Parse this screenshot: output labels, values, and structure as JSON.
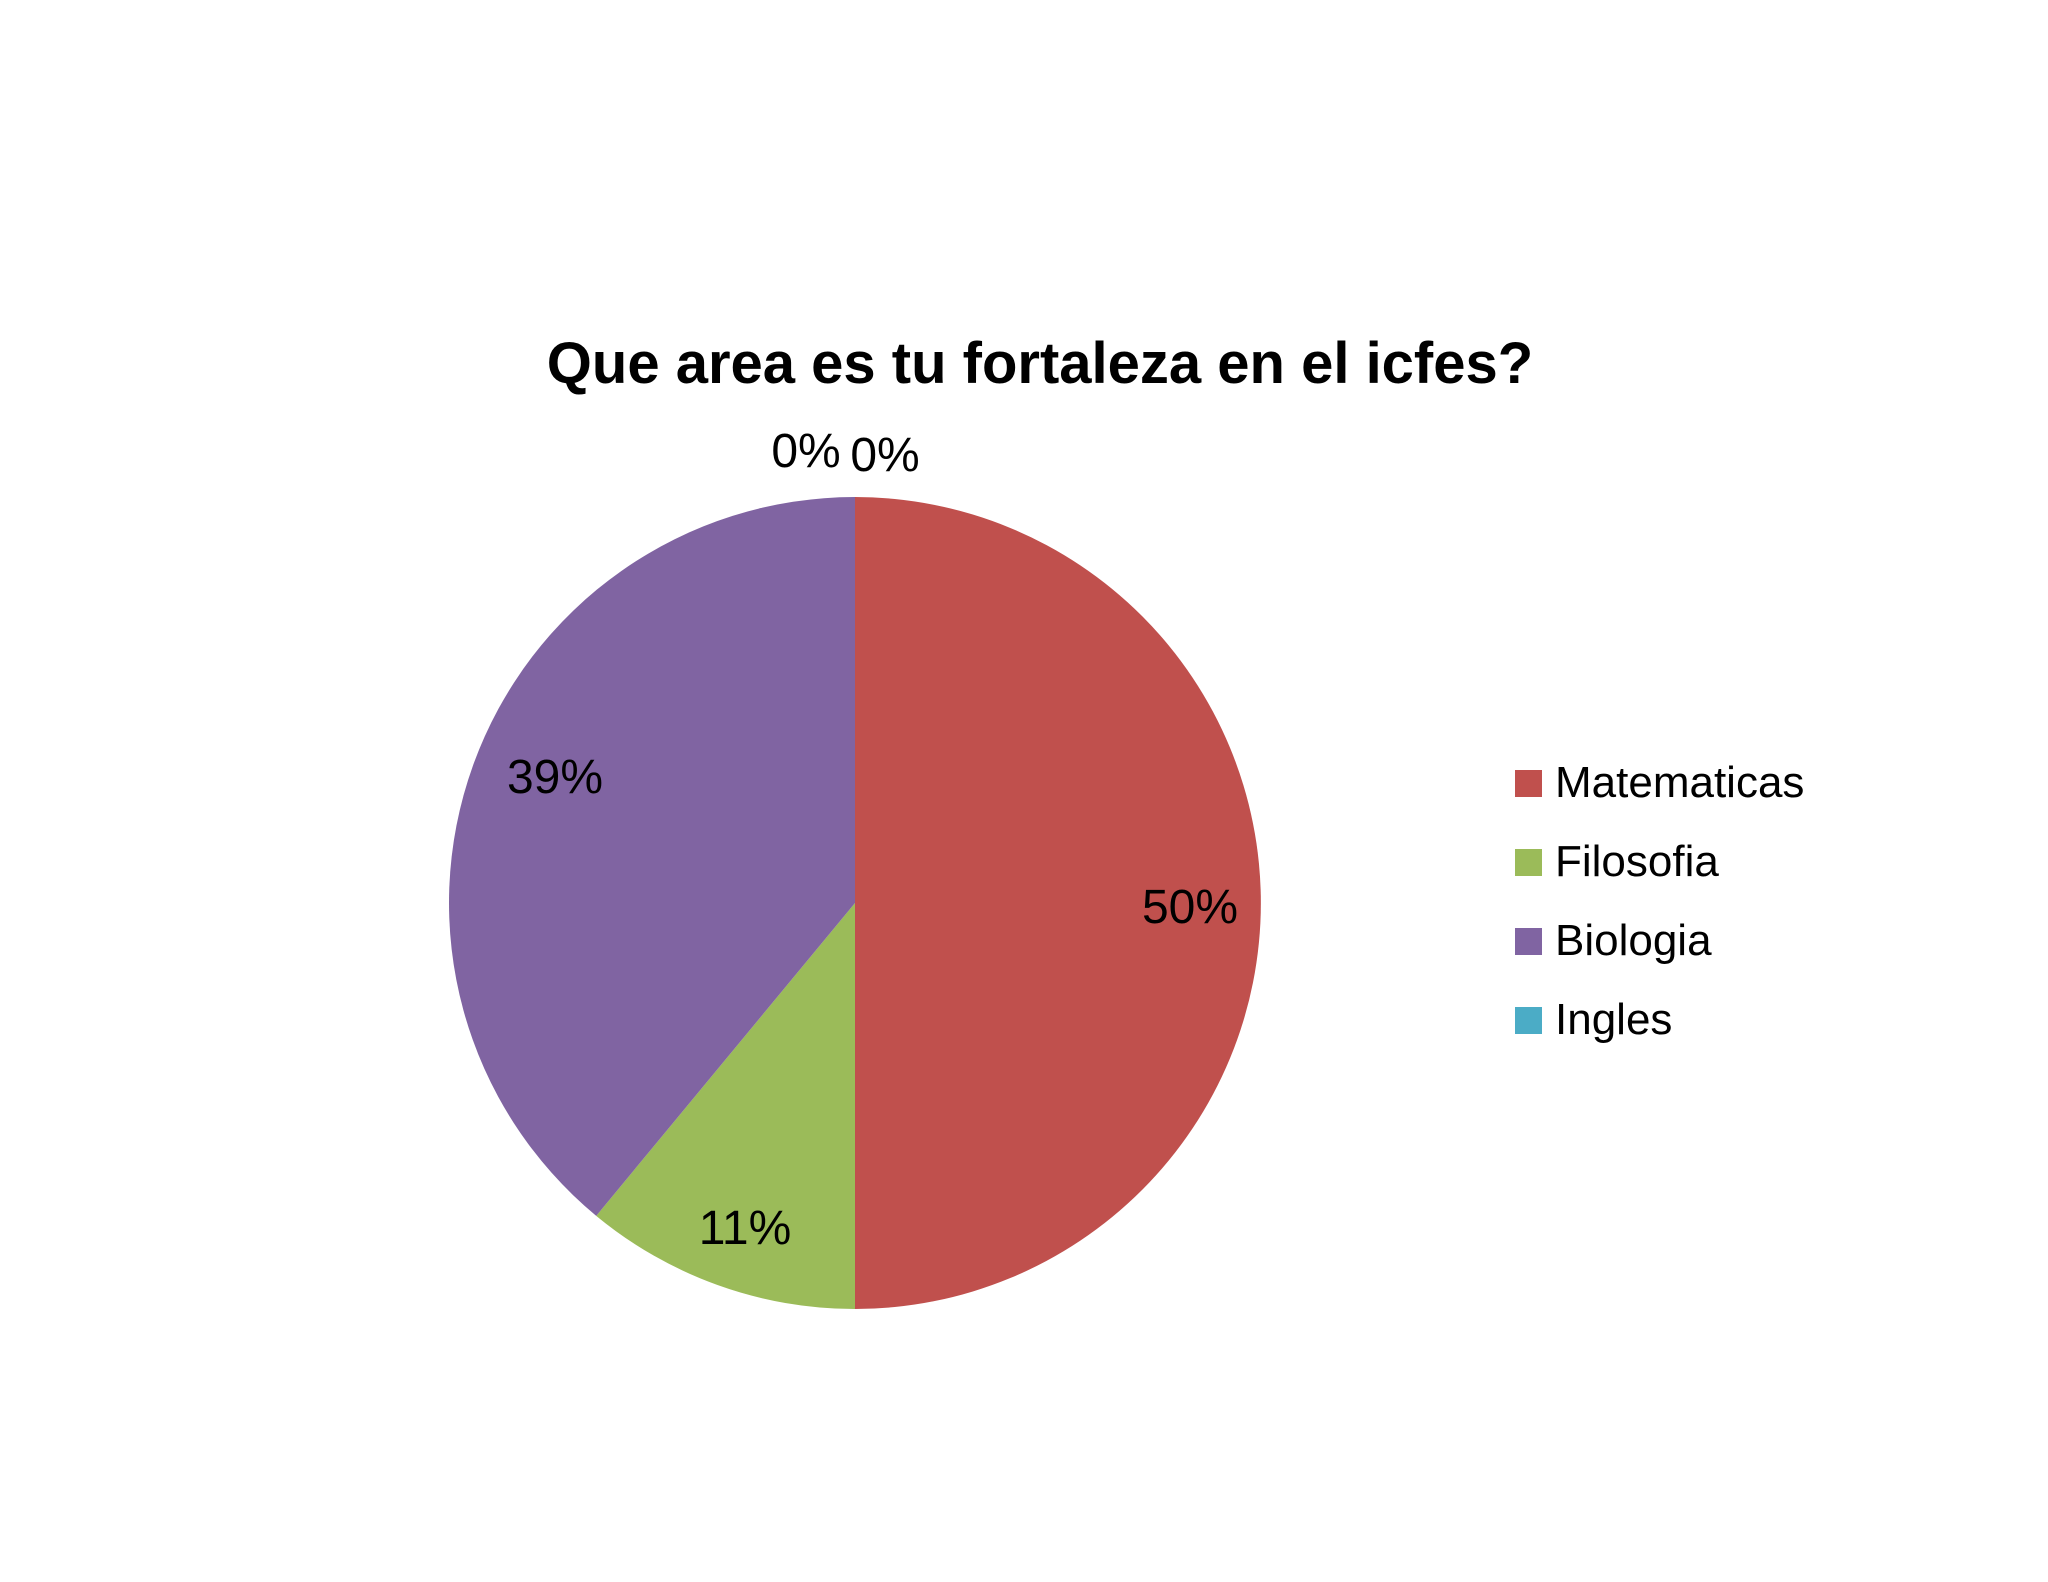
{
  "chart_data": {
    "type": "pie",
    "title": "Que area es tu fortaleza en el icfes?",
    "categories": [
      "Matematicas",
      "Filosofia",
      "Biologia",
      "Ingles"
    ],
    "values": [
      50,
      11,
      39,
      0
    ],
    "data_labels": [
      "50%",
      "11%",
      "39%",
      "0%"
    ],
    "extra_label": "0%",
    "colors": [
      "#c0504d",
      "#9bbb59",
      "#8064a2",
      "#4bacc6"
    ],
    "legend_position": "right",
    "start_angle": "top",
    "direction": "clockwise"
  }
}
